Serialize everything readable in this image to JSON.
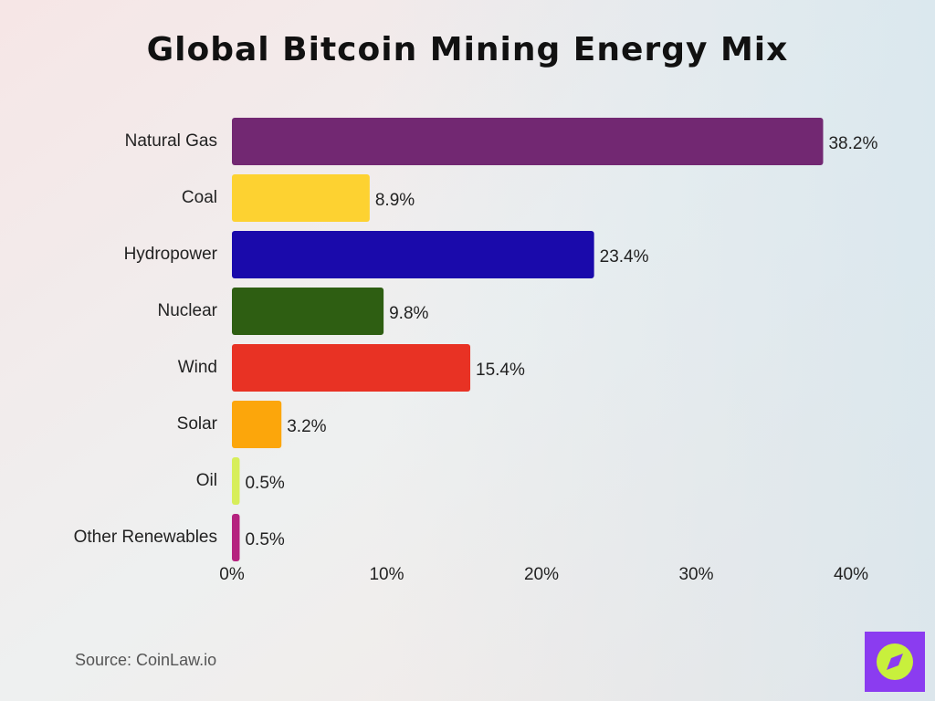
{
  "chart_data": {
    "type": "bar",
    "orientation": "horizontal",
    "title": "Global Bitcoin Mining Energy Mix",
    "categories": [
      "Natural Gas",
      "Coal",
      "Hydropower",
      "Nuclear",
      "Wind",
      "Solar",
      "Oil",
      "Other Renewables"
    ],
    "values": [
      38.2,
      8.9,
      23.4,
      9.8,
      15.4,
      3.2,
      0.5,
      0.5
    ],
    "value_labels": [
      "38.2%",
      "8.9%",
      "23.4%",
      "9.8%",
      "15.4%",
      "3.2%",
      "0.5%",
      "0.5%"
    ],
    "colors": [
      "#722872",
      "#fdd231",
      "#1a0aab",
      "#2e5e12",
      "#e83224",
      "#fca60b",
      "#d7ee5a",
      "#b5227f"
    ],
    "xlim": [
      0,
      40
    ],
    "xticks": [
      {
        "value": 0,
        "label": "0%"
      },
      {
        "value": 10,
        "label": "10%"
      },
      {
        "value": 20,
        "label": "20%"
      },
      {
        "value": 30,
        "label": "30%"
      },
      {
        "value": 40,
        "label": "40%"
      }
    ],
    "grid": false,
    "source": "Source: CoinLaw.io"
  }
}
